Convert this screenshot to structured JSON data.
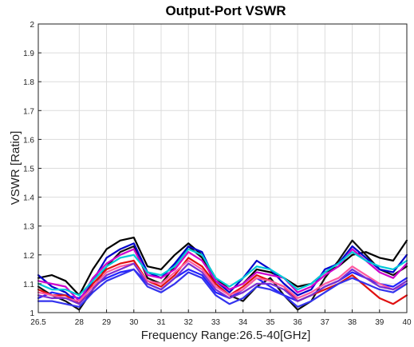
{
  "chart_data": {
    "type": "line",
    "title": "Output-Port VSWR",
    "xlabel": "Frequency Range:26.5-40[GHz]",
    "ylabel": "VSWR [Ratio]",
    "xlim": [
      26.5,
      40
    ],
    "ylim": [
      1,
      2
    ],
    "xticks": [
      26.5,
      28,
      29,
      30,
      31,
      32,
      33,
      34,
      35,
      36,
      37,
      38,
      39,
      40
    ],
    "xtick_labels": [
      "26.5",
      "28",
      "29",
      "30",
      "31",
      "32",
      "33",
      "34",
      "35",
      "36",
      "37",
      "38",
      "39",
      "40"
    ],
    "yticks": [
      1,
      1.1,
      1.2,
      1.3,
      1.4,
      1.5,
      1.6,
      1.7,
      1.8,
      1.9,
      2
    ],
    "ytick_labels": [
      "1",
      "1.1",
      "1.2",
      "1.3",
      "1.4",
      "1.5",
      "1.6",
      "1.7",
      "1.8",
      "1.9",
      "2"
    ],
    "grid": true,
    "x": [
      26.5,
      27,
      27.5,
      28,
      28.5,
      29,
      29.5,
      30,
      30.5,
      31,
      31.5,
      32,
      32.5,
      33,
      33.5,
      34,
      34.5,
      35,
      35.5,
      36,
      36.5,
      37,
      37.5,
      38,
      38.5,
      39,
      39.5,
      40
    ],
    "series": [
      {
        "color": "#000000",
        "values": [
          1.12,
          1.13,
          1.11,
          1.06,
          1.15,
          1.22,
          1.25,
          1.26,
          1.16,
          1.15,
          1.2,
          1.24,
          1.2,
          1.12,
          1.08,
          1.1,
          1.15,
          1.14,
          1.12,
          1.09,
          1.1,
          1.14,
          1.16,
          1.2,
          1.21,
          1.19,
          1.18,
          1.25
        ]
      },
      {
        "color": "#111111",
        "values": [
          1.09,
          1.06,
          1.04,
          1.01,
          1.08,
          1.16,
          1.21,
          1.23,
          1.12,
          1.1,
          1.16,
          1.23,
          1.19,
          1.1,
          1.06,
          1.04,
          1.09,
          1.12,
          1.06,
          1.01,
          1.04,
          1.12,
          1.18,
          1.25,
          1.2,
          1.15,
          1.13,
          1.16
        ]
      },
      {
        "color": "#0000cc",
        "values": [
          1.13,
          1.09,
          1.07,
          1.03,
          1.11,
          1.19,
          1.22,
          1.24,
          1.14,
          1.12,
          1.17,
          1.23,
          1.21,
          1.11,
          1.07,
          1.12,
          1.18,
          1.15,
          1.1,
          1.06,
          1.08,
          1.15,
          1.17,
          1.23,
          1.19,
          1.15,
          1.14,
          1.2
        ]
      },
      {
        "color": "#2222ff",
        "values": [
          1.05,
          1.07,
          1.06,
          1.05,
          1.09,
          1.12,
          1.14,
          1.15,
          1.1,
          1.08,
          1.12,
          1.15,
          1.13,
          1.07,
          1.05,
          1.08,
          1.12,
          1.09,
          1.06,
          1.04,
          1.06,
          1.09,
          1.11,
          1.14,
          1.12,
          1.1,
          1.09,
          1.12
        ]
      },
      {
        "color": "#e01010",
        "values": [
          1.08,
          1.06,
          1.06,
          1.03,
          1.1,
          1.15,
          1.17,
          1.18,
          1.11,
          1.09,
          1.13,
          1.19,
          1.16,
          1.1,
          1.06,
          1.09,
          1.13,
          1.11,
          1.09,
          1.04,
          1.06,
          1.08,
          1.1,
          1.13,
          1.09,
          1.05,
          1.03,
          1.06
        ]
      },
      {
        "color": "#cc00cc",
        "values": [
          1.11,
          1.1,
          1.09,
          1.04,
          1.12,
          1.17,
          1.2,
          1.22,
          1.13,
          1.12,
          1.15,
          1.21,
          1.18,
          1.11,
          1.08,
          1.1,
          1.14,
          1.13,
          1.12,
          1.07,
          1.09,
          1.13,
          1.16,
          1.22,
          1.18,
          1.14,
          1.12,
          1.17
        ]
      },
      {
        "color": "#00c8d8",
        "values": [
          1.1,
          1.08,
          1.08,
          1.06,
          1.11,
          1.16,
          1.19,
          1.2,
          1.14,
          1.13,
          1.16,
          1.22,
          1.2,
          1.12,
          1.09,
          1.12,
          1.16,
          1.15,
          1.12,
          1.08,
          1.1,
          1.14,
          1.17,
          1.21,
          1.18,
          1.16,
          1.15,
          1.18
        ]
      },
      {
        "color": "#ff5aa0",
        "values": [
          1.07,
          1.06,
          1.05,
          1.04,
          1.09,
          1.14,
          1.16,
          1.17,
          1.11,
          1.1,
          1.14,
          1.18,
          1.15,
          1.09,
          1.06,
          1.08,
          1.12,
          1.11,
          1.09,
          1.05,
          1.07,
          1.1,
          1.12,
          1.16,
          1.13,
          1.1,
          1.08,
          1.1
        ]
      },
      {
        "color": "#7a2fd0",
        "values": [
          1.06,
          1.05,
          1.05,
          1.03,
          1.08,
          1.13,
          1.15,
          1.17,
          1.1,
          1.08,
          1.12,
          1.17,
          1.14,
          1.08,
          1.05,
          1.07,
          1.1,
          1.1,
          1.08,
          1.04,
          1.06,
          1.09,
          1.11,
          1.15,
          1.12,
          1.09,
          1.08,
          1.11
        ]
      },
      {
        "color": "#3333ee",
        "values": [
          1.04,
          1.04,
          1.03,
          1.02,
          1.07,
          1.11,
          1.13,
          1.15,
          1.09,
          1.07,
          1.1,
          1.14,
          1.12,
          1.06,
          1.03,
          1.05,
          1.09,
          1.08,
          1.06,
          1.02,
          1.04,
          1.07,
          1.1,
          1.12,
          1.1,
          1.08,
          1.07,
          1.1
        ]
      }
    ]
  }
}
